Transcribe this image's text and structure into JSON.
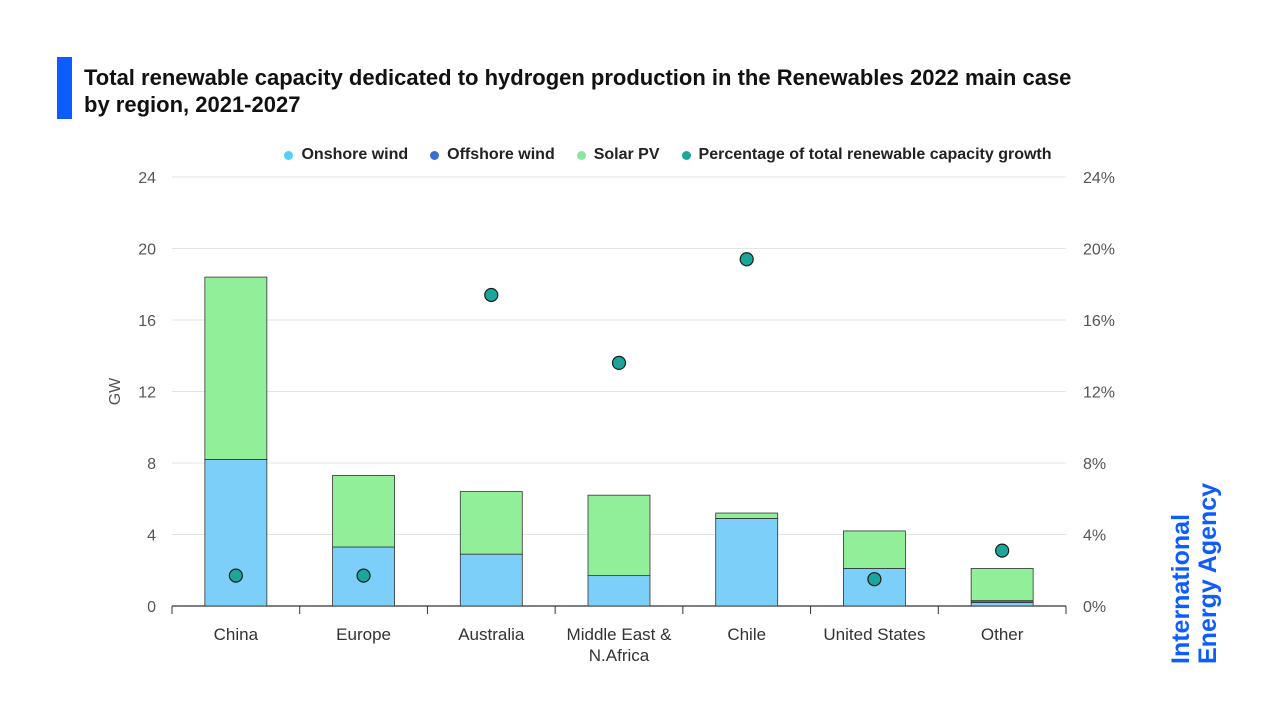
{
  "title_line1": "Total renewable capacity dedicated to hydrogen production in the Renewables 2022 main case",
  "title_line2": "by region, 2021-2027",
  "legend": [
    {
      "label": "Onshore wind",
      "color": "#4fd2f6"
    },
    {
      "label": "Offshore wind",
      "color": "#3b6fce"
    },
    {
      "label": "Solar PV",
      "color": "#8ae6a0"
    },
    {
      "label": "Percentage of total renewable capacity growth",
      "color": "#1aa79b"
    }
  ],
  "logo": {
    "line1": "International",
    "line2": "Energy Agency",
    "color": "#0d5cff"
  },
  "chart_data": {
    "type": "bar",
    "stacked": true,
    "categories": [
      "China",
      "Europe",
      "Australia",
      "Middle East &\nN.Africa",
      "Chile",
      "United States",
      "Other"
    ],
    "series": [
      {
        "name": "Onshore wind",
        "color": "#7ccff9",
        "values": [
          8.2,
          3.3,
          2.9,
          1.7,
          4.9,
          2.1,
          0.2
        ]
      },
      {
        "name": "Offshore wind",
        "color": "#3b6fce",
        "values": [
          0,
          0,
          0,
          0,
          0,
          0,
          0.1
        ]
      },
      {
        "name": "Solar PV",
        "color": "#91ef9a",
        "values": [
          10.2,
          4.0,
          3.5,
          4.5,
          0.3,
          2.1,
          1.8
        ]
      }
    ],
    "secondary_series": {
      "name": "Percentage of total renewable capacity growth",
      "type": "scatter",
      "color": "#1aa79b",
      "values": [
        1.7,
        1.7,
        17.4,
        13.6,
        19.4,
        1.5,
        3.1
      ]
    },
    "ylabel": "GW",
    "ylim": [
      0,
      24
    ],
    "y_ticks": [
      "0",
      "4",
      "8",
      "12",
      "16",
      "20",
      "24"
    ],
    "y2lim": [
      0,
      24
    ],
    "y2_ticks": [
      "0%",
      "4%",
      "8%",
      "12%",
      "16%",
      "20%",
      "24%"
    ],
    "grid": true,
    "legend_position": "top"
  }
}
